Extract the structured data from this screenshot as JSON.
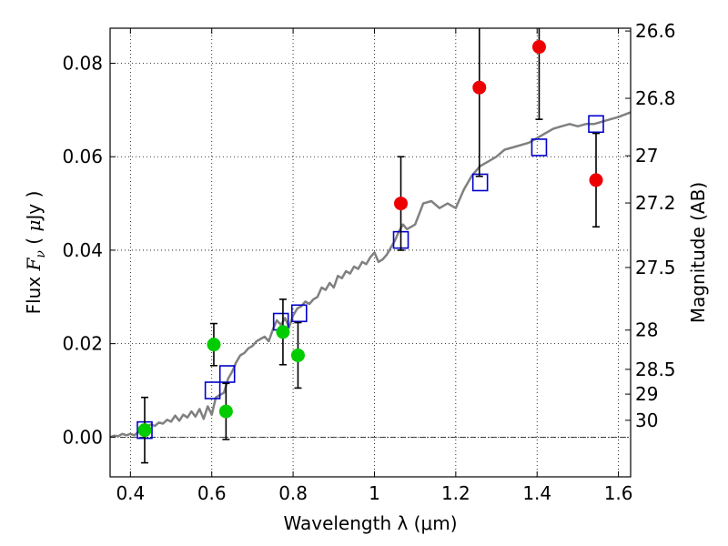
{
  "chart_data": {
    "type": "scatter",
    "title": "",
    "xlabel": "Wavelength  λ (μm)",
    "ylabel": "Flux  F_ν  ( μJy )",
    "ylabel_parts": {
      "pre": "Flux  ",
      "var": "F",
      "sub": "ν",
      "mid": "  ( ",
      "mu": "μ",
      "post": "Jy )"
    },
    "ylabel_right": "Magnitude (AB)",
    "xlim": [
      0.35,
      1.63
    ],
    "ylim": [
      -0.0085,
      0.0875
    ],
    "grid": true,
    "x_ticks": [
      0.4,
      0.6,
      0.8,
      1.0,
      1.2,
      1.4,
      1.6
    ],
    "x_tick_labels": [
      "0.4",
      "0.6",
      "0.8",
      "1",
      "1.2",
      "1.4",
      "1.6"
    ],
    "y_ticks": [
      0.0,
      0.02,
      0.04,
      0.06,
      0.08
    ],
    "y_tick_labels": [
      "0.00",
      "0.02",
      "0.04",
      "0.06",
      "0.08"
    ],
    "right_axis_ticks": [
      {
        "flux": 0.0869,
        "label": "26.6"
      },
      {
        "flux": 0.0725,
        "label": "26.8"
      },
      {
        "flux": 0.0602,
        "label": "27"
      },
      {
        "flux": 0.0501,
        "label": "27.2"
      },
      {
        "flux": 0.0363,
        "label": "27.5"
      },
      {
        "flux": 0.0229,
        "label": "28"
      },
      {
        "flux": 0.0145,
        "label": "28.5"
      },
      {
        "flux": 0.0092,
        "label": "29"
      },
      {
        "flux": 0.0036,
        "label": "30"
      }
    ],
    "series": [
      {
        "marker": "line",
        "color": "#808080",
        "x": [
          0.35,
          0.36,
          0.37,
          0.38,
          0.39,
          0.4,
          0.41,
          0.42,
          0.43,
          0.44,
          0.45,
          0.46,
          0.47,
          0.48,
          0.49,
          0.5,
          0.51,
          0.52,
          0.53,
          0.54,
          0.55,
          0.56,
          0.57,
          0.58,
          0.59,
          0.6,
          0.61,
          0.62,
          0.63,
          0.64,
          0.65,
          0.66,
          0.67,
          0.68,
          0.69,
          0.7,
          0.71,
          0.72,
          0.73,
          0.74,
          0.75,
          0.76,
          0.77,
          0.78,
          0.79,
          0.8,
          0.81,
          0.82,
          0.83,
          0.84,
          0.85,
          0.86,
          0.87,
          0.88,
          0.89,
          0.9,
          0.91,
          0.92,
          0.93,
          0.94,
          0.95,
          0.96,
          0.97,
          0.98,
          0.99,
          1.0,
          1.01,
          1.02,
          1.03,
          1.04,
          1.05,
          1.06,
          1.07,
          1.08,
          1.09,
          1.1,
          1.12,
          1.14,
          1.16,
          1.18,
          1.2,
          1.22,
          1.24,
          1.26,
          1.28,
          1.3,
          1.32,
          1.34,
          1.36,
          1.38,
          1.4,
          1.42,
          1.44,
          1.46,
          1.48,
          1.5,
          1.52,
          1.54,
          1.56,
          1.58,
          1.6,
          1.63
        ],
        "y": [
          0.0,
          0.0003,
          0.0002,
          0.0007,
          0.0004,
          0.0007,
          0.0004,
          0.0012,
          0.0015,
          0.0022,
          0.0027,
          0.0024,
          0.0031,
          0.0029,
          0.0037,
          0.0033,
          0.0046,
          0.0035,
          0.0048,
          0.0042,
          0.0055,
          0.0044,
          0.006,
          0.0039,
          0.0066,
          0.0048,
          0.0085,
          0.009,
          0.0095,
          0.0125,
          0.014,
          0.016,
          0.0175,
          0.018,
          0.019,
          0.0195,
          0.0205,
          0.021,
          0.0215,
          0.0205,
          0.023,
          0.025,
          0.024,
          0.0255,
          0.0235,
          0.026,
          0.0275,
          0.028,
          0.029,
          0.0285,
          0.0295,
          0.03,
          0.032,
          0.0315,
          0.033,
          0.032,
          0.0345,
          0.034,
          0.0355,
          0.035,
          0.0365,
          0.036,
          0.0375,
          0.037,
          0.0385,
          0.0395,
          0.0375,
          0.038,
          0.039,
          0.0405,
          0.042,
          0.044,
          0.0455,
          0.0445,
          0.045,
          0.0455,
          0.05,
          0.0505,
          0.049,
          0.05,
          0.049,
          0.053,
          0.056,
          0.058,
          0.059,
          0.06,
          0.0615,
          0.062,
          0.0625,
          0.063,
          0.064,
          0.065,
          0.066,
          0.0665,
          0.067,
          0.0665,
          0.067,
          0.067,
          0.0675,
          0.068,
          0.0685,
          0.0695
        ]
      },
      {
        "marker": "square",
        "color": "#0000cc",
        "x": [
          0.435,
          0.602,
          0.638,
          0.77,
          0.815,
          1.065,
          1.26,
          1.405,
          1.545
        ],
        "y": [
          0.0015,
          0.01,
          0.0135,
          0.0247,
          0.0265,
          0.0422,
          0.0545,
          0.062,
          0.067
        ]
      },
      {
        "marker": "circle",
        "color": "#00cc00",
        "x": [
          0.435,
          0.605,
          0.635,
          0.775,
          0.812
        ],
        "y": [
          0.0015,
          0.0198,
          0.0055,
          0.0225,
          0.0175
        ],
        "yerr": [
          0.007,
          0.0045,
          0.006,
          0.007,
          0.007
        ]
      },
      {
        "marker": "circle",
        "color": "#ee0000",
        "x": [
          1.065,
          1.258,
          1.405,
          1.545
        ],
        "y": [
          0.05,
          0.0748,
          0.0835,
          0.055
        ],
        "yerr": [
          0.01,
          0.019,
          0.0155,
          0.01
        ]
      }
    ]
  }
}
